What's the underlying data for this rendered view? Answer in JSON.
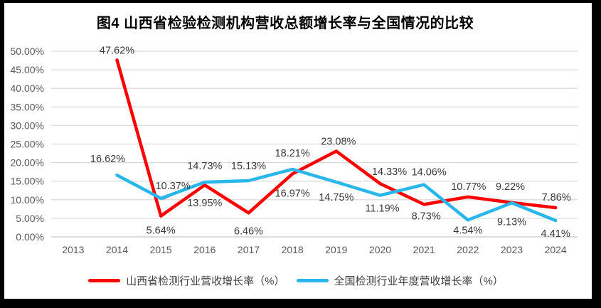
{
  "title": "图4  山西省检验检测机构营收总额增长率与全国情况的比较",
  "colors": {
    "shanxi_line": "#FF0000",
    "national_line": "#29B6EA",
    "gridline": "#DBDBDB",
    "zero_axis": "#C6C6C6",
    "axis_text": "#595959",
    "data_label_text": "#3A3A3A",
    "frame_border": "#000000",
    "background": "#FFFFFF"
  },
  "chart_data": {
    "type": "line",
    "categories": [
      "2013",
      "2014",
      "2015",
      "2016",
      "2017",
      "2018",
      "2019",
      "2020",
      "2021",
      "2022",
      "2023",
      "2024"
    ],
    "series": [
      {
        "name": "山西省检测行业营收增长率（%）",
        "color": "#FF0000",
        "values": [
          null,
          47.62,
          5.64,
          13.95,
          6.46,
          16.97,
          23.08,
          14.33,
          8.73,
          10.77,
          9.22,
          7.86
        ],
        "labels": [
          null,
          "47.62%",
          "5.64%",
          "13.95%",
          "6.46%",
          "16.97%",
          "23.08%",
          "14.33%",
          "8.73%",
          "10.77%",
          "9.22%",
          "7.86%"
        ]
      },
      {
        "name": "全国检测行业年度营收增长率（%）",
        "color": "#29B6EA",
        "values": [
          null,
          16.62,
          10.37,
          14.73,
          15.13,
          18.21,
          14.75,
          11.19,
          14.06,
          4.54,
          9.13,
          4.41
        ],
        "labels": [
          null,
          "16.62%",
          "10.37%",
          "14.73%",
          "15.13%",
          "18.21%",
          "14.75%",
          "11.19%",
          "14.06%",
          "4.54%",
          "9.13%",
          "4.41%"
        ]
      }
    ],
    "ylim": [
      0,
      50
    ],
    "ytick_step": 5,
    "ytick_labels": [
      "0.00%",
      "5.00%",
      "10.00%",
      "15.00%",
      "20.00%",
      "25.00%",
      "30.00%",
      "35.00%",
      "40.00%",
      "45.00%",
      "50.00%"
    ],
    "grid": true,
    "data_labels": true,
    "legend_position": "bottom"
  }
}
